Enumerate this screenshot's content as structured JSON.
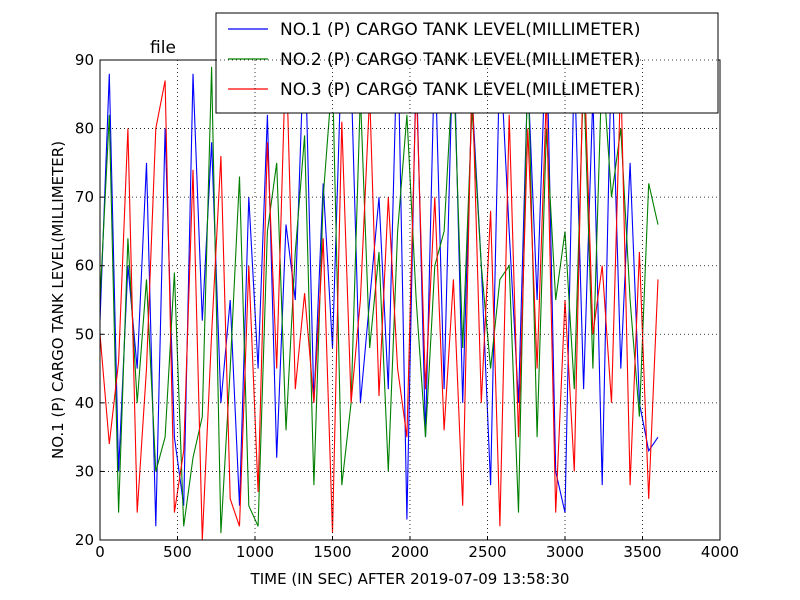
{
  "chart_data": {
    "type": "line",
    "title": "file",
    "x_label": "TIME (IN SEC) AFTER 2019-07-09 13:58:30",
    "y_label": "NO.1 (P) CARGO TANK LEVEL(MILLIMETER)",
    "x": [
      0,
      60,
      120,
      180,
      240,
      300,
      360,
      420,
      480,
      540,
      600,
      660,
      720,
      780,
      840,
      900,
      960,
      1020,
      1080,
      1140,
      1200,
      1260,
      1320,
      1380,
      1440,
      1500,
      1560,
      1620,
      1680,
      1740,
      1800,
      1860,
      1920,
      1980,
      2040,
      2100,
      2160,
      2220,
      2280,
      2340,
      2400,
      2460,
      2520,
      2580,
      2640,
      2700,
      2760,
      2820,
      2880,
      2940,
      3000,
      3060,
      3120,
      3180,
      3240,
      3300,
      3360,
      3420,
      3480,
      3540,
      3600
    ],
    "series": [
      {
        "name": "NO.1 (P) CARGO TANK LEVEL(MILLIMETER)",
        "color": "#0000ff",
        "values": [
          52,
          88,
          30,
          60,
          45,
          75,
          22,
          80,
          35,
          25,
          88,
          52,
          78,
          40,
          55,
          25,
          70,
          45,
          82,
          32,
          66,
          55,
          95,
          40,
          72,
          48,
          92,
          88,
          40,
          55,
          70,
          42,
          95,
          23,
          90,
          35,
          92,
          42,
          95,
          40,
          85,
          60,
          28,
          92,
          65,
          40,
          88,
          55,
          95,
          30,
          24,
          90,
          42,
          85,
          28,
          92,
          45,
          75,
          40,
          33,
          35
        ]
      },
      {
        "name": "NO.2 (P) CARGO TANK LEVEL(MILLIMETER)",
        "color": "#008000",
        "values": [
          55,
          82,
          24,
          64,
          40,
          58,
          30,
          35,
          59,
          22,
          32,
          38,
          89,
          21,
          45,
          73,
          25,
          22,
          65,
          75,
          36,
          62,
          79,
          28,
          70,
          88,
          28,
          40,
          85,
          48,
          62,
          30,
          65,
          82,
          55,
          35,
          60,
          65,
          90,
          48,
          83,
          60,
          45,
          58,
          60,
          24,
          90,
          35,
          80,
          55,
          65,
          42,
          88,
          45,
          90,
          70,
          80,
          55,
          38,
          72,
          66
        ]
      },
      {
        "name": "NO.3 (P) CARGO TANK LEVEL(MILLIMETER)",
        "color": "#ff0000",
        "values": [
          50,
          34,
          46,
          80,
          24,
          45,
          80,
          87,
          24,
          33,
          74,
          20,
          50,
          76,
          26,
          22,
          60,
          27,
          78,
          45,
          92,
          42,
          56,
          40,
          64,
          21,
          81,
          40,
          55,
          85,
          41,
          70,
          45,
          35,
          87,
          42,
          70,
          36,
          58,
          25,
          88,
          40,
          68,
          22,
          82,
          35,
          80,
          45,
          85,
          24,
          55,
          30,
          92,
          50,
          60,
          40,
          88,
          28,
          62,
          26,
          58
        ]
      }
    ],
    "xlim": [
      0,
      4000
    ],
    "xticks": [
      0,
      500,
      1000,
      1500,
      2000,
      2500,
      3000,
      3500,
      4000
    ],
    "ylim": [
      20,
      90
    ],
    "yticks": [
      20,
      30,
      40,
      50,
      60,
      70,
      80,
      90
    ],
    "grid": true,
    "legend": "upper right"
  }
}
